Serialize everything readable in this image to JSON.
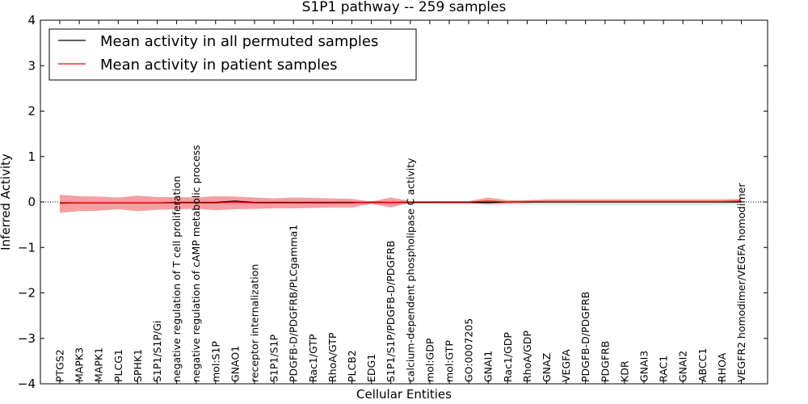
{
  "chart_data": {
    "type": "line",
    "title": "S1P1 pathway -- 259 samples",
    "xlabel": "Cellular Entities",
    "ylabel": "Inferred Activity",
    "ylim": [
      -4,
      4
    ],
    "yticks": [
      -4,
      -3,
      -2,
      -1,
      0,
      1,
      2,
      3,
      4
    ],
    "ytick_labels": [
      "−4",
      "−3",
      "−2",
      "−1",
      "0",
      "1",
      "2",
      "3",
      "4"
    ],
    "legend_position": "top-left",
    "categories": [
      "PTGS2",
      "MAPK3",
      "MAPK1",
      "PLCG1",
      "SPHK1",
      "S1P1/S1P/Gi",
      "negative regulation of T cell proliferation",
      "negative regulation of cAMP metabolic process",
      "mol:S1P",
      "GNAO1",
      "receptor internalization",
      "S1P1/S1P",
      "PDGFB-D/PDGFRB/PLCgamma1",
      "Rac1/GTP",
      "RhoA/GTP",
      "PLCB2",
      "EDG1",
      "S1P1/S1P/PDGFB-D/PDGFRB",
      "calcium-dependent phospholipase C activity",
      "mol:GDP",
      "mol:GTP",
      "GO:0007205",
      "GNAI1",
      "Rac1/GDP",
      "RhoA/GDP",
      "GNAZ",
      "VEGFA",
      "PDGFB-D/PDGFRB",
      "PDGFRB",
      "KDR",
      "GNAI3",
      "RAC1",
      "GNAI2",
      "ABCC1",
      "RHOA",
      "VEGFR2 homodimer/VEGFA homodimer"
    ],
    "series": [
      {
        "name": "Mean activity in all permuted samples",
        "color": "#000000",
        "values": [
          -0.02,
          -0.02,
          -0.02,
          -0.02,
          -0.02,
          -0.02,
          -0.01,
          -0.01,
          -0.01,
          0.02,
          -0.01,
          -0.01,
          -0.01,
          -0.01,
          -0.01,
          -0.01,
          -0.01,
          -0.01,
          -0.01,
          -0.01,
          -0.01,
          -0.01,
          -0.01,
          0.0,
          0.0,
          0.0,
          0.0,
          0.0,
          0.0,
          0.0,
          0.0,
          0.0,
          0.0,
          0.0,
          0.0,
          0.0
        ],
        "band": {
          "color": "#c8d0e0",
          "upper": [
            0.02,
            0.02,
            0.02,
            0.02,
            0.02,
            0.02,
            0.02,
            0.02,
            0.02,
            0.02,
            0.02,
            0.02,
            0.02,
            0.02,
            0.02,
            0.02,
            0.02,
            0.02,
            0.02,
            0.02,
            0.02,
            0.02,
            0.02,
            0.02,
            0.02,
            0.02,
            0.02,
            0.02,
            0.02,
            0.02,
            0.02,
            0.02,
            0.02,
            0.02,
            0.02,
            0.02
          ],
          "lower": [
            -0.04,
            -0.04,
            -0.04,
            -0.04,
            -0.04,
            -0.04,
            -0.04,
            -0.04,
            -0.04,
            -0.04,
            -0.04,
            -0.04,
            -0.04,
            -0.04,
            -0.04,
            -0.04,
            -0.04,
            -0.04,
            -0.04,
            -0.04,
            -0.05,
            -0.05,
            -0.06,
            -0.06,
            -0.06,
            -0.06,
            -0.06,
            -0.07,
            -0.07,
            -0.07,
            -0.07,
            -0.07,
            -0.07,
            -0.07,
            -0.06,
            -0.05
          ]
        }
      },
      {
        "name": "Mean activity in patient samples",
        "color": "#ff0000",
        "values": [
          -0.03,
          -0.02,
          -0.02,
          -0.02,
          -0.02,
          -0.02,
          -0.02,
          -0.02,
          -0.02,
          0.0,
          -0.02,
          -0.02,
          -0.02,
          -0.02,
          -0.02,
          -0.02,
          0.0,
          -0.01,
          0.0,
          0.0,
          0.0,
          0.0,
          0.02,
          0.0,
          0.01,
          0.01,
          0.01,
          0.01,
          0.01,
          0.01,
          0.01,
          0.01,
          0.01,
          0.01,
          0.01,
          0.02
        ],
        "band": {
          "color": "#f08080",
          "upper": [
            0.16,
            0.13,
            0.12,
            0.1,
            0.14,
            0.11,
            0.11,
            0.1,
            0.13,
            0.12,
            0.1,
            0.08,
            0.1,
            0.09,
            0.08,
            0.07,
            0.01,
            0.1,
            0.02,
            0.02,
            0.02,
            0.02,
            0.1,
            0.04,
            0.04,
            0.06,
            0.06,
            0.06,
            0.06,
            0.06,
            0.06,
            0.06,
            0.06,
            0.06,
            0.06,
            0.07
          ],
          "lower": [
            -0.24,
            -0.2,
            -0.19,
            -0.16,
            -0.2,
            -0.17,
            -0.16,
            -0.15,
            -0.18,
            -0.16,
            -0.15,
            -0.14,
            -0.14,
            -0.13,
            -0.12,
            -0.12,
            -0.04,
            -0.12,
            -0.02,
            -0.02,
            -0.02,
            -0.02,
            -0.05,
            -0.03,
            -0.02,
            -0.01,
            -0.01,
            -0.01,
            -0.01,
            -0.01,
            -0.01,
            -0.01,
            -0.01,
            -0.01,
            -0.01,
            -0.01
          ]
        }
      }
    ]
  }
}
